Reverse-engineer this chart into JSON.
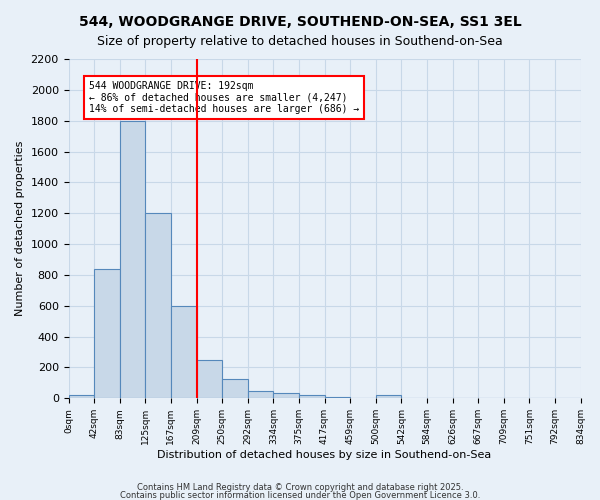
{
  "title": "544, WOODGRANGE DRIVE, SOUTHEND-ON-SEA, SS1 3EL",
  "subtitle": "Size of property relative to detached houses in Southend-on-Sea",
  "xlabel": "Distribution of detached houses by size in Southend-on-Sea",
  "ylabel": "Number of detached properties",
  "bar_values": [
    20,
    840,
    1800,
    1200,
    600,
    250,
    125,
    50,
    35,
    20,
    10,
    0,
    20,
    0,
    0,
    0,
    0,
    0,
    0,
    0
  ],
  "bar_labels": [
    "0sqm",
    "42sqm",
    "83sqm",
    "125sqm",
    "167sqm",
    "209sqm",
    "250sqm",
    "292sqm",
    "334sqm",
    "375sqm",
    "417sqm",
    "459sqm",
    "500sqm",
    "542sqm",
    "584sqm",
    "626sqm",
    "667sqm",
    "709sqm",
    "751sqm",
    "792sqm"
  ],
  "extra_label": "834sqm",
  "bar_color": "#c8d8e8",
  "bar_edge_color": "#5588bb",
  "grid_color": "#c8d8e8",
  "vline_x": 4.5,
  "vline_color": "red",
  "annotation_text": "544 WOODGRANGE DRIVE: 192sqm\n← 86% of detached houses are smaller (4,247)\n14% of semi-detached houses are larger (686) →",
  "annotation_box_color": "white",
  "annotation_box_edge": "red",
  "ylim": [
    0,
    2200
  ],
  "yticks": [
    0,
    200,
    400,
    600,
    800,
    1000,
    1200,
    1400,
    1600,
    1800,
    2000,
    2200
  ],
  "footnote1": "Contains HM Land Registry data © Crown copyright and database right 2025.",
  "footnote2": "Contains public sector information licensed under the Open Government Licence 3.0.",
  "background_color": "#e8f0f8",
  "title_fontsize": 10,
  "subtitle_fontsize": 9
}
